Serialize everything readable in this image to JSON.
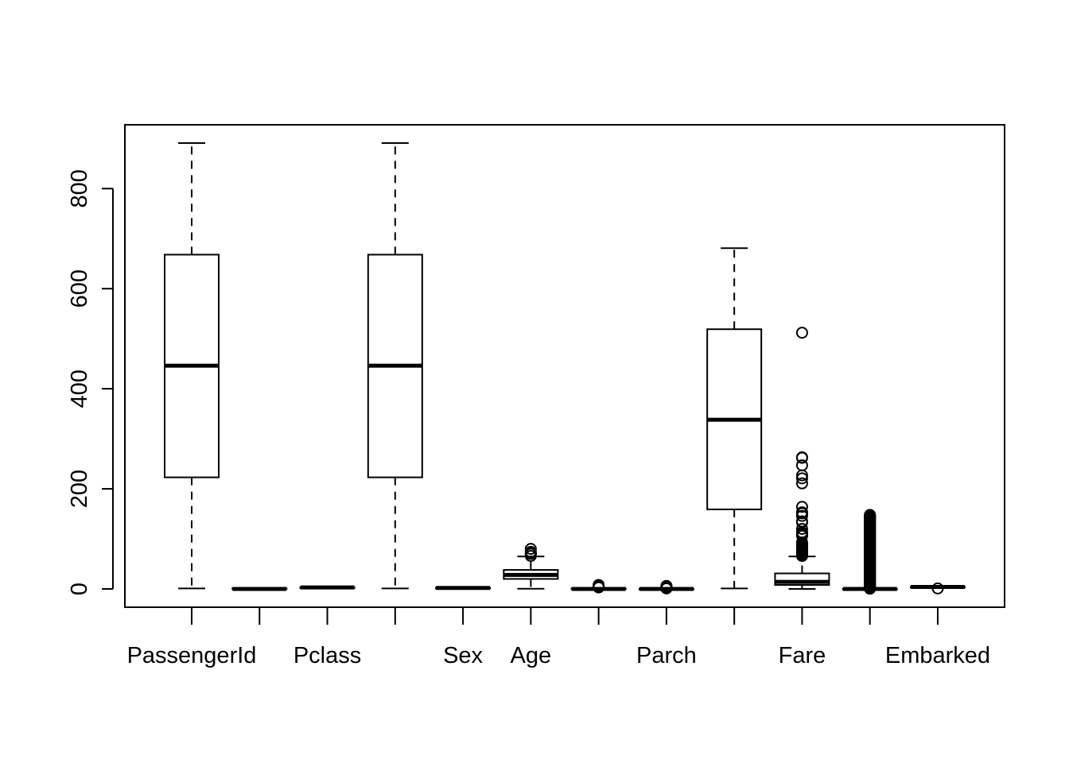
{
  "chart_data": {
    "type": "boxplot",
    "title": "",
    "xlabel": "",
    "ylabel": "",
    "ylim": [
      -35,
      930
    ],
    "y_ticks": [
      0,
      200,
      400,
      600,
      800
    ],
    "y_tick_labels": [
      "0",
      "200",
      "400",
      "600",
      "800"
    ],
    "grid": false,
    "legend": "none",
    "categories": [
      "PassengerId",
      "",
      "Pclass",
      "",
      "Sex",
      "Age",
      "",
      "Parch",
      "",
      "Fare",
      "",
      "Embarked"
    ],
    "boxes": [
      {
        "label": "PassengerId",
        "whisker_low": 1,
        "q1": 223,
        "median": 446,
        "q3": 668,
        "whisker_high": 891,
        "outliers": []
      },
      {
        "label": "",
        "whisker_low": 0,
        "q1": 0,
        "median": 0,
        "q3": 1,
        "whisker_high": 1,
        "outliers": []
      },
      {
        "label": "Pclass",
        "whisker_low": 1,
        "q1": 2,
        "median": 3,
        "q3": 3,
        "whisker_high": 3,
        "outliers": []
      },
      {
        "label": "",
        "whisker_low": 1,
        "q1": 223,
        "median": 446,
        "q3": 668,
        "whisker_high": 891,
        "outliers": []
      },
      {
        "label": "Sex",
        "whisker_low": 1,
        "q1": 1,
        "median": 2,
        "q3": 2,
        "whisker_high": 2,
        "outliers": []
      },
      {
        "label": "Age",
        "whisker_low": 0.4,
        "q1": 20,
        "median": 28,
        "q3": 38,
        "whisker_high": 65,
        "outliers": [
          66,
          70,
          70.5,
          71,
          74,
          80
        ]
      },
      {
        "label": "",
        "whisker_low": 0,
        "q1": 0,
        "median": 0,
        "q3": 1,
        "whisker_high": 2,
        "outliers": [
          3,
          4,
          5,
          8
        ]
      },
      {
        "label": "Parch",
        "whisker_low": 0,
        "q1": 0,
        "median": 0,
        "q3": 0,
        "whisker_high": 0,
        "outliers": [
          1,
          2,
          3,
          4,
          5,
          6
        ]
      },
      {
        "label": "",
        "whisker_low": 1,
        "q1": 159,
        "median": 338,
        "q3": 519,
        "whisker_high": 681,
        "outliers": []
      },
      {
        "label": "Fare",
        "whisker_low": 0,
        "q1": 8,
        "median": 14,
        "q3": 31,
        "whisker_high": 65,
        "outliers": [
          66,
          69,
          71,
          73,
          76,
          77,
          78,
          79,
          80,
          82,
          83,
          86,
          89,
          90,
          91,
          93,
          106,
          108,
          110,
          113,
          120,
          133,
          135,
          146,
          151,
          153,
          164,
          211,
          221,
          227,
          247,
          262,
          263,
          512
        ]
      },
      {
        "label": "",
        "whisker_low": 0,
        "q1": 0,
        "median": 0,
        "q3": 0,
        "whisker_high": 0,
        "outliers": [
          0.5,
          1,
          2,
          3,
          4,
          5,
          6,
          7,
          8,
          9,
          10,
          11,
          12,
          13,
          14,
          15,
          16,
          17,
          18,
          19,
          20,
          21,
          22,
          23,
          24,
          25,
          26,
          27,
          28,
          29,
          30,
          31,
          32,
          33,
          34,
          35,
          36,
          37,
          38,
          39,
          40,
          41,
          42,
          43,
          44,
          45,
          46,
          47,
          48,
          49,
          50,
          51,
          52,
          53,
          54,
          55,
          56,
          57,
          58,
          59,
          60,
          61,
          62,
          63,
          64,
          65,
          66,
          67,
          68,
          69,
          70,
          71,
          72,
          73,
          74,
          75,
          76,
          77,
          78,
          79,
          80,
          81,
          82,
          83,
          84,
          85,
          86,
          87,
          88,
          89,
          90,
          91,
          92,
          93,
          94,
          95,
          96,
          97,
          98,
          99,
          100,
          101,
          102,
          103,
          104,
          105,
          106,
          107,
          108,
          109,
          110,
          111,
          112,
          113,
          114,
          115,
          116,
          117,
          118,
          119,
          120,
          121,
          122,
          123,
          124,
          125,
          126,
          127,
          128,
          129,
          130,
          131,
          132,
          133,
          134,
          135,
          136,
          137,
          138,
          139,
          140,
          141,
          142,
          143,
          144,
          145,
          146,
          147,
          148
        ]
      },
      {
        "label": "Embarked",
        "whisker_low": 2,
        "q1": 3,
        "median": 4,
        "q3": 4,
        "whisker_high": 4,
        "outliers": [
          1
        ]
      }
    ]
  }
}
